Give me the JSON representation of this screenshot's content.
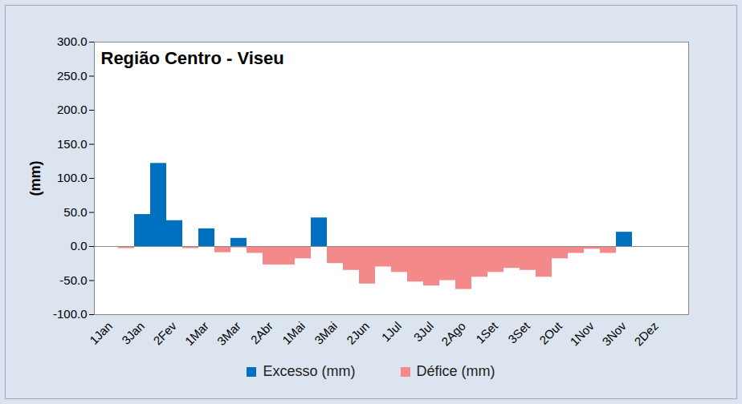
{
  "chart_data": {
    "type": "bar",
    "title": "Região Centro - Viseu",
    "y_label": "(mm)",
    "categories": [
      "1Jan",
      null,
      "3Jan",
      null,
      "2Fev",
      null,
      "1Mar",
      null,
      "3Mar",
      null,
      "2Abr",
      null,
      "1Mai",
      null,
      "3Mai",
      null,
      "2Jun",
      null,
      "1Jul",
      null,
      "3Jul",
      null,
      "2Ago",
      null,
      "1Set",
      null,
      "3Set",
      null,
      "2Out",
      null,
      "1Nov",
      null,
      "3Nov",
      null,
      "2Dez",
      null
    ],
    "series": [
      {
        "name": "Excesso (mm)",
        "color": "#0070c0",
        "values": [
          0,
          0,
          47,
          122,
          38,
          0,
          26,
          0,
          12,
          0,
          0,
          0,
          0,
          42,
          0,
          0,
          0,
          0,
          0,
          0,
          0,
          0,
          0,
          0,
          0,
          0,
          0,
          0,
          0,
          0,
          0,
          0,
          21,
          0,
          0,
          0
        ]
      },
      {
        "name": "Défice (mm)",
        "color": "#f4898a",
        "values": [
          -1,
          -3,
          0,
          0,
          0,
          -3,
          0,
          -9,
          -2,
          -10,
          -27,
          -27,
          -18,
          0,
          -25,
          -35,
          -55,
          -30,
          -38,
          -52,
          -58,
          -50,
          -63,
          -45,
          -38,
          -32,
          -35,
          -45,
          -18,
          -10,
          -4,
          -10,
          0,
          0,
          0,
          0
        ]
      }
    ],
    "ylim": [
      -100,
      300
    ],
    "yticks": [
      {
        "value": -100,
        "label": "-100.0"
      },
      {
        "value": -50,
        "label": "-50.0"
      },
      {
        "value": 0,
        "label": "0.0"
      },
      {
        "value": 50,
        "label": "50.0"
      },
      {
        "value": 100,
        "label": "100.0"
      },
      {
        "value": 150,
        "label": "150.0"
      },
      {
        "value": 200,
        "label": "200.0"
      },
      {
        "value": 250,
        "label": "250.0"
      },
      {
        "value": 300,
        "label": "300.0"
      }
    ],
    "grid": false,
    "legend": "bottom"
  }
}
